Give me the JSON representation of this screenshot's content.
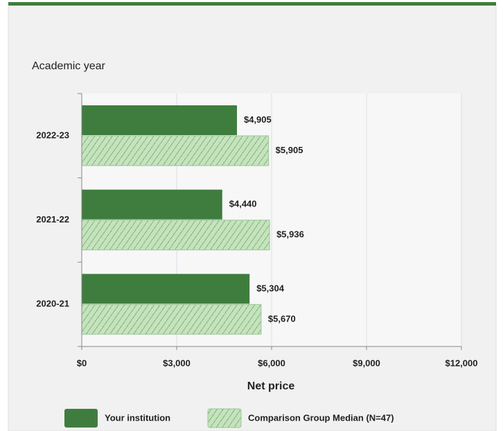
{
  "chart_data": {
    "type": "barh",
    "ylabel": "Academic year",
    "xlabel": "Net price",
    "categories": [
      "2022-23",
      "2021-22",
      "2020-21"
    ],
    "series": [
      {
        "name": "Your institution",
        "color": "#3f7d3f",
        "pattern": "solid",
        "values": [
          4905,
          4440,
          5304
        ],
        "value_labels": [
          "$4,905",
          "$4,440",
          "$5,304"
        ]
      },
      {
        "name": "Comparison Group Median (N=47)",
        "color": "#c5e3bd",
        "pattern": "hatch",
        "values": [
          5905,
          5936,
          5670
        ],
        "value_labels": [
          "$5,905",
          "$5,936",
          "$5,670"
        ]
      }
    ],
    "xlim": [
      0,
      12000
    ],
    "xticks": [
      {
        "value": 0,
        "label": "$0"
      },
      {
        "value": 3000,
        "label": "$3,000"
      },
      {
        "value": 6000,
        "label": "$6,000"
      },
      {
        "value": 9000,
        "label": "$9,000"
      },
      {
        "value": 12000,
        "label": "$12,000"
      }
    ],
    "grid": true
  }
}
